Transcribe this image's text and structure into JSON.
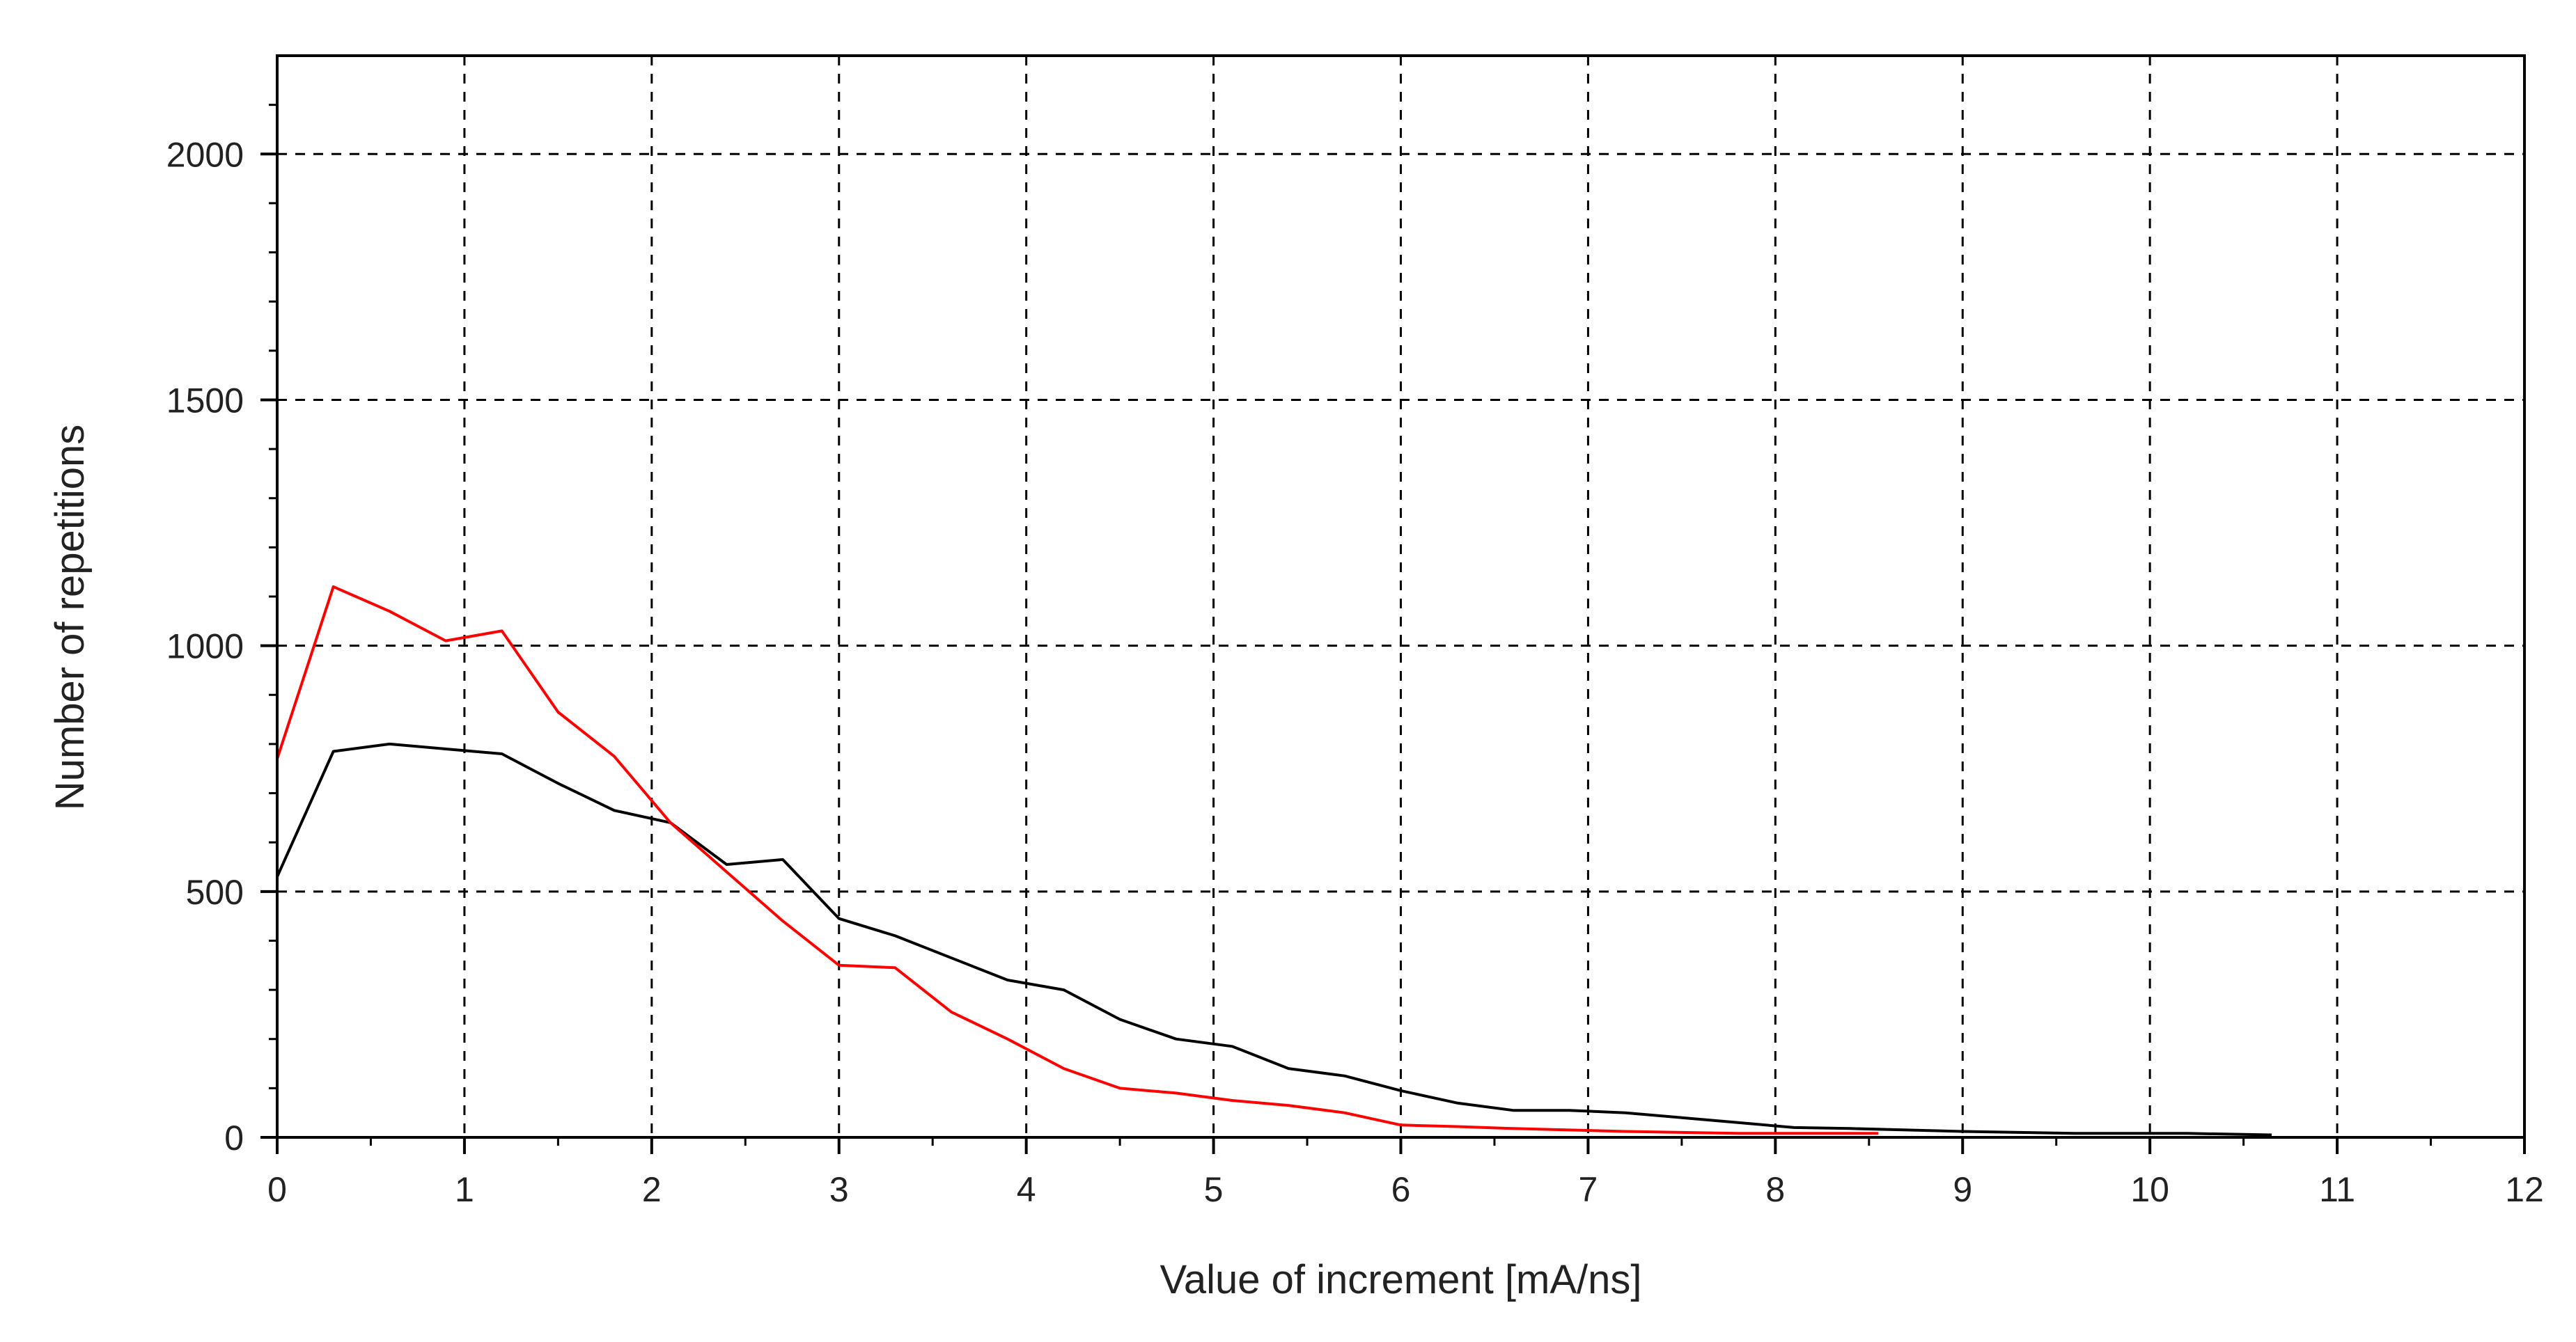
{
  "chart_data": {
    "type": "line",
    "title": "",
    "xlabel": "Value of increment [mA/ns]",
    "ylabel": "Number of repetitions",
    "xlim": [
      0,
      12
    ],
    "ylim": [
      0,
      2200
    ],
    "xticks": [
      0,
      1,
      2,
      3,
      4,
      5,
      6,
      7,
      8,
      9,
      10,
      11,
      12
    ],
    "yticks": [
      0,
      500,
      1000,
      1500,
      2000
    ],
    "grid": true,
    "grid_style": "dashed",
    "legend": "none",
    "series": [
      {
        "color": "#000000",
        "x": [
          0,
          0.3,
          0.6,
          0.9,
          1.2,
          1.5,
          1.8,
          2.1,
          2.4,
          2.7,
          3.0,
          3.3,
          3.6,
          3.9,
          4.2,
          4.5,
          4.8,
          5.1,
          5.4,
          5.7,
          6.0,
          6.3,
          6.6,
          6.9,
          7.2,
          7.5,
          7.8,
          8.1,
          8.4,
          8.7,
          9.0,
          9.3,
          9.6,
          9.9,
          10.2,
          10.5,
          10.65
        ],
        "y": [
          530,
          785,
          800,
          790,
          780,
          720,
          665,
          640,
          555,
          565,
          445,
          410,
          365,
          320,
          300,
          240,
          200,
          185,
          140,
          125,
          95,
          70,
          55,
          55,
          50,
          40,
          30,
          20,
          18,
          15,
          12,
          10,
          8,
          8,
          8,
          6,
          5
        ]
      },
      {
        "color": "#ff0000",
        "x": [
          0,
          0.3,
          0.6,
          0.9,
          1.2,
          1.5,
          1.8,
          2.1,
          2.4,
          2.7,
          3.0,
          3.3,
          3.6,
          3.9,
          4.2,
          4.5,
          4.8,
          5.1,
          5.4,
          5.7,
          6.0,
          6.3,
          6.6,
          6.9,
          7.2,
          7.5,
          7.8,
          8.1,
          8.4,
          8.55
        ],
        "y": [
          770,
          1120,
          1070,
          1010,
          1030,
          865,
          775,
          640,
          540,
          440,
          350,
          345,
          255,
          200,
          140,
          100,
          90,
          75,
          65,
          50,
          25,
          22,
          18,
          15,
          12,
          10,
          8,
          8,
          8,
          8
        ]
      }
    ]
  }
}
